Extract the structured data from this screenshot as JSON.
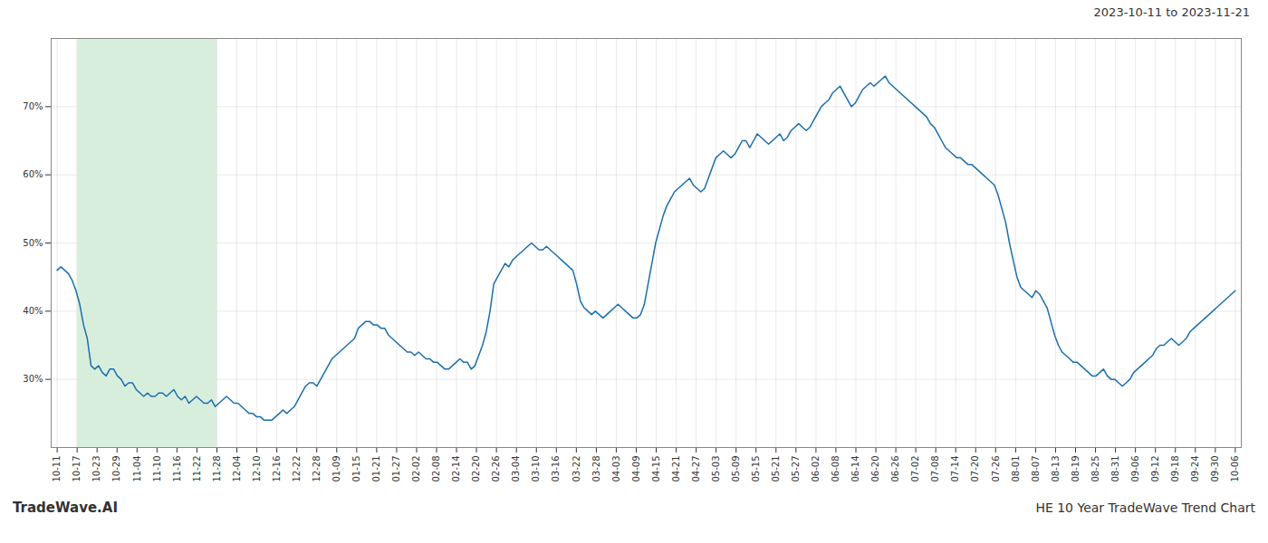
{
  "chart_data": {
    "type": "line",
    "title": "HE 10 Year TradeWave Trend Chart",
    "subtitle": "2023-10-11 to 2023-11-21",
    "annotations": [
      "TradeWave.AI"
    ],
    "color": "#1a6fad",
    "grid": true,
    "highlight": {
      "from": "10-17",
      "to": "11-28",
      "color": "#d8eedd"
    },
    "xlim": [
      -0.3,
      59.3
    ],
    "xticks": [
      {
        "value": 0,
        "label": "10-11"
      },
      {
        "value": 1,
        "label": "10-17"
      },
      {
        "value": 2,
        "label": "10-23"
      },
      {
        "value": 3,
        "label": "10-29"
      },
      {
        "value": 4,
        "label": "11-04"
      },
      {
        "value": 5,
        "label": "11-10"
      },
      {
        "value": 6,
        "label": "11-16"
      },
      {
        "value": 7,
        "label": "11-22"
      },
      {
        "value": 8,
        "label": "11-28"
      },
      {
        "value": 9,
        "label": "12-04"
      },
      {
        "value": 10,
        "label": "12-10"
      },
      {
        "value": 11,
        "label": "12-16"
      },
      {
        "value": 12,
        "label": "12-22"
      },
      {
        "value": 13,
        "label": "12-28"
      },
      {
        "value": 14,
        "label": "01-09"
      },
      {
        "value": 15,
        "label": "01-15"
      },
      {
        "value": 16,
        "label": "01-21"
      },
      {
        "value": 17,
        "label": "01-27"
      },
      {
        "value": 18,
        "label": "02-02"
      },
      {
        "value": 19,
        "label": "02-08"
      },
      {
        "value": 20,
        "label": "02-14"
      },
      {
        "value": 21,
        "label": "02-20"
      },
      {
        "value": 22,
        "label": "02-26"
      },
      {
        "value": 23,
        "label": "03-04"
      },
      {
        "value": 24,
        "label": "03-10"
      },
      {
        "value": 25,
        "label": "03-16"
      },
      {
        "value": 26,
        "label": "03-22"
      },
      {
        "value": 27,
        "label": "03-28"
      },
      {
        "value": 28,
        "label": "04-03"
      },
      {
        "value": 29,
        "label": "04-09"
      },
      {
        "value": 30,
        "label": "04-15"
      },
      {
        "value": 31,
        "label": "04-21"
      },
      {
        "value": 32,
        "label": "04-27"
      },
      {
        "value": 33,
        "label": "05-03"
      },
      {
        "value": 34,
        "label": "05-09"
      },
      {
        "value": 35,
        "label": "05-15"
      },
      {
        "value": 36,
        "label": "05-21"
      },
      {
        "value": 37,
        "label": "05-27"
      },
      {
        "value": 38,
        "label": "06-02"
      },
      {
        "value": 39,
        "label": "06-08"
      },
      {
        "value": 40,
        "label": "06-14"
      },
      {
        "value": 41,
        "label": "06-20"
      },
      {
        "value": 42,
        "label": "06-26"
      },
      {
        "value": 43,
        "label": "07-02"
      },
      {
        "value": 44,
        "label": "07-08"
      },
      {
        "value": 45,
        "label": "07-14"
      },
      {
        "value": 46,
        "label": "07-20"
      },
      {
        "value": 47,
        "label": "07-26"
      },
      {
        "value": 48,
        "label": "08-01"
      },
      {
        "value": 49,
        "label": "08-07"
      },
      {
        "value": 50,
        "label": "08-13"
      },
      {
        "value": 51,
        "label": "08-19"
      },
      {
        "value": 52,
        "label": "08-25"
      },
      {
        "value": 53,
        "label": "08-31"
      },
      {
        "value": 54,
        "label": "09-06"
      },
      {
        "value": 55,
        "label": "09-12"
      },
      {
        "value": 56,
        "label": "09-18"
      },
      {
        "value": 57,
        "label": "09-24"
      },
      {
        "value": 58,
        "label": "09-30"
      },
      {
        "value": 59,
        "label": "10-06"
      }
    ],
    "ylim": [
      20,
      80
    ],
    "yticks": [
      {
        "value": 30,
        "label": "30%"
      },
      {
        "value": 40,
        "label": "40%"
      },
      {
        "value": 50,
        "label": "50%"
      },
      {
        "value": 60,
        "label": "60%"
      },
      {
        "value": 70,
        "label": "70%"
      }
    ],
    "values": [
      46.0,
      46.5,
      46.0,
      45.5,
      44.5,
      43.0,
      41.0,
      38.0,
      36.0,
      32.0,
      31.5,
      32.0,
      31.0,
      30.5,
      31.5,
      31.5,
      30.5,
      30.0,
      29.0,
      29.5,
      29.5,
      28.5,
      28.0,
      27.5,
      28.0,
      27.5,
      27.5,
      28.0,
      28.0,
      27.5,
      28.0,
      28.5,
      27.5,
      27.0,
      27.5,
      26.5,
      27.0,
      27.5,
      27.0,
      26.5,
      26.5,
      27.0,
      26.0,
      26.5,
      27.0,
      27.5,
      27.0,
      26.5,
      26.5,
      26.0,
      25.5,
      25.0,
      25.0,
      24.5,
      24.5,
      24.0,
      24.0,
      24.0,
      24.5,
      25.0,
      25.5,
      25.0,
      25.5,
      26.0,
      27.0,
      28.0,
      29.0,
      29.5,
      29.5,
      29.0,
      30.0,
      31.0,
      32.0,
      33.0,
      33.5,
      34.0,
      34.5,
      35.0,
      35.5,
      36.0,
      37.5,
      38.0,
      38.5,
      38.5,
      38.0,
      38.0,
      37.5,
      37.5,
      36.5,
      36.0,
      35.5,
      35.0,
      34.5,
      34.0,
      34.0,
      33.5,
      34.0,
      33.5,
      33.0,
      33.0,
      32.5,
      32.5,
      32.0,
      31.5,
      31.5,
      32.0,
      32.5,
      33.0,
      32.5,
      32.5,
      31.5,
      32.0,
      33.5,
      35.0,
      37.0,
      40.0,
      44.0,
      45.0,
      46.0,
      47.0,
      46.5,
      47.5,
      48.0,
      48.5,
      49.0,
      49.5,
      50.0,
      49.5,
      49.0,
      49.0,
      49.5,
      49.0,
      48.5,
      48.0,
      47.5,
      47.0,
      46.5,
      46.0,
      44.0,
      41.5,
      40.5,
      40.0,
      39.5,
      40.0,
      39.5,
      39.0,
      39.5,
      40.0,
      40.5,
      41.0,
      40.5,
      40.0,
      39.5,
      39.0,
      39.0,
      39.5,
      41.0,
      44.0,
      47.0,
      50.0,
      52.0,
      54.0,
      55.5,
      56.5,
      57.5,
      58.0,
      58.5,
      59.0,
      59.5,
      58.5,
      58.0,
      57.5,
      58.0,
      59.5,
      61.0,
      62.5,
      63.0,
      63.5,
      63.0,
      62.5,
      63.0,
      64.0,
      65.0,
      65.0,
      64.0,
      65.0,
      66.0,
      65.5,
      65.0,
      64.5,
      65.0,
      65.5,
      66.0,
      65.0,
      65.5,
      66.5,
      67.0,
      67.5,
      67.0,
      66.5,
      67.0,
      68.0,
      69.0,
      70.0,
      70.5,
      71.0,
      72.0,
      72.5,
      73.0,
      72.0,
      71.0,
      70.0,
      70.5,
      71.5,
      72.5,
      73.0,
      73.5,
      73.0,
      73.5,
      74.0,
      74.5,
      73.5,
      73.0,
      72.5,
      72.0,
      71.5,
      71.0,
      70.5,
      70.0,
      69.5,
      69.0,
      68.5,
      67.5,
      67.0,
      66.0,
      65.0,
      64.0,
      63.5,
      63.0,
      62.5,
      62.5,
      62.0,
      61.5,
      61.5,
      61.0,
      60.5,
      60.0,
      59.5,
      59.0,
      58.5,
      57.0,
      55.0,
      53.0,
      50.0,
      47.5,
      45.0,
      43.5,
      43.0,
      42.5,
      42.0,
      43.0,
      42.5,
      41.5,
      40.5,
      38.5,
      36.5,
      35.0,
      34.0,
      33.5,
      33.0,
      32.5,
      32.5,
      32.0,
      31.5,
      31.0,
      30.5,
      30.5,
      31.0,
      31.5,
      30.5,
      30.0,
      30.0,
      29.5,
      29.0,
      29.5,
      30.0,
      31.0,
      31.5,
      32.0,
      32.5,
      33.0,
      33.5,
      34.5,
      35.0,
      35.0,
      35.5,
      36.0,
      35.5,
      35.0,
      35.5,
      36.0,
      37.0,
      37.5,
      38.0,
      38.5,
      39.0,
      39.5,
      40.0,
      40.5,
      41.0,
      41.5,
      42.0,
      42.5,
      43.0
    ]
  }
}
